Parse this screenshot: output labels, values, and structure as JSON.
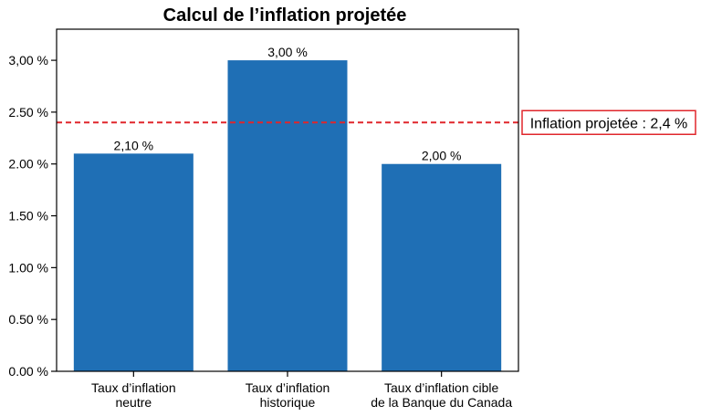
{
  "chart_data": {
    "type": "bar",
    "title": "Calcul de l’inflation projetée",
    "xlabel": "",
    "ylabel": "",
    "ylim": [
      0,
      3.3
    ],
    "grid": false,
    "categories": [
      [
        "Taux d’inflation",
        "neutre"
      ],
      [
        "Taux d’inflation",
        "historique"
      ],
      [
        "Taux d’inflation cible",
        "de la Banque du Canada"
      ]
    ],
    "values": [
      2.1,
      3.0,
      2.0
    ],
    "data_labels": [
      "2,10 %",
      "3,00 %",
      "2,00 %"
    ],
    "yticks": [
      {
        "value": 0.0,
        "label": "0.00 %"
      },
      {
        "value": 0.5,
        "label": "0.50 %"
      },
      {
        "value": 1.0,
        "label": "1.00 %"
      },
      {
        "value": 1.5,
        "label": "1.50 %"
      },
      {
        "value": 2.0,
        "label": "2.00 %"
      },
      {
        "value": 2.5,
        "label": "2.50 %"
      },
      {
        "value": 3.0,
        "label": "3,00 %"
      }
    ],
    "reference_line": {
      "value": 2.4,
      "label": "Inflation projetée : 2,4 %",
      "color": "#e0262b",
      "style": "dashed"
    },
    "bar_color": "#1f6fb5"
  }
}
